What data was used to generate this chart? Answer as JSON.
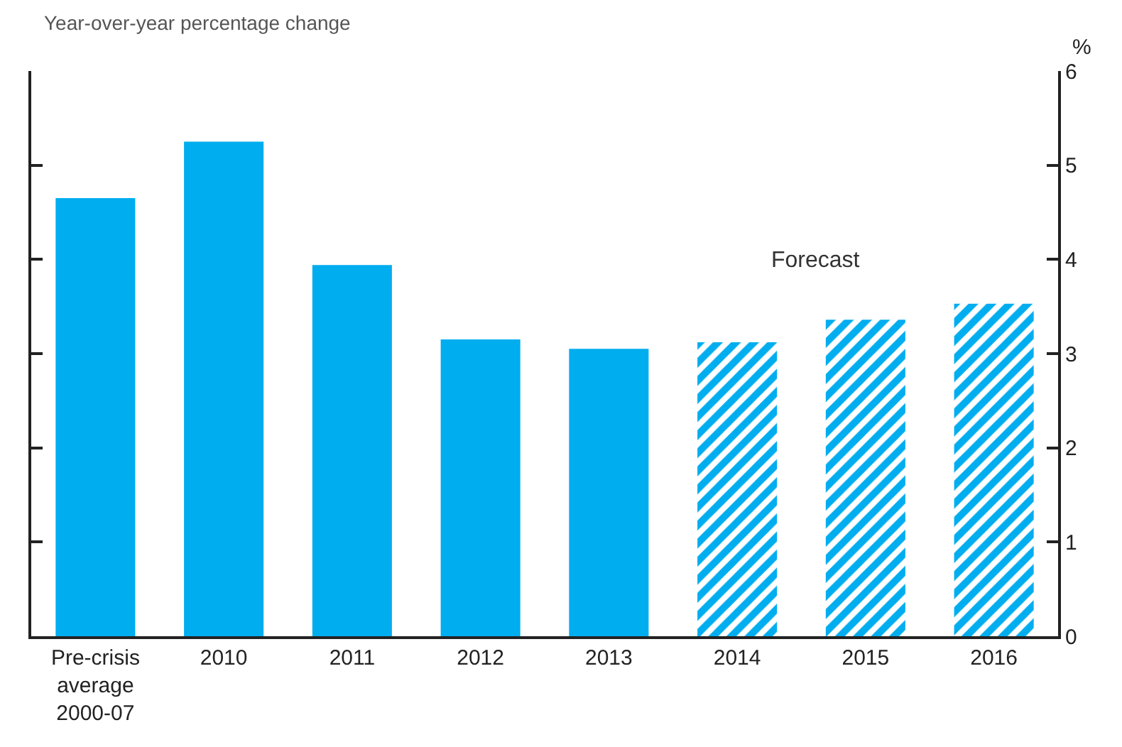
{
  "chart_data": {
    "type": "bar",
    "title": "Year-over-year percentage change",
    "ylabel": "%",
    "categories": [
      "Pre-crisis average 2000-07",
      "2010",
      "2011",
      "2012",
      "2013",
      "2014",
      "2015",
      "2016"
    ],
    "series": [
      {
        "color": "#00adef",
        "values": [
          4.65,
          5.25,
          3.94,
          3.15,
          3.05,
          null,
          null,
          null
        ]
      },
      {
        "color": "#00adef",
        "values": [
          null,
          null,
          null,
          null,
          null,
          3.12,
          3.36,
          3.53
        ]
      }
    ],
    "annotations": [
      "Forecast"
    ],
    "ylim": [
      0,
      6
    ],
    "yticks": [
      0,
      1,
      2,
      3,
      4,
      5,
      6
    ]
  }
}
